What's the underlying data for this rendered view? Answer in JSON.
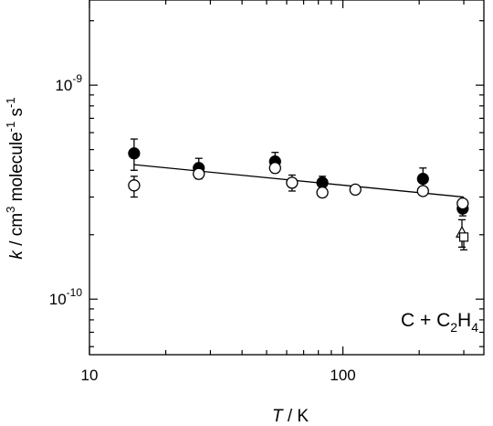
{
  "chart_data": {
    "type": "scatter",
    "title": "",
    "xlabel": {
      "italic": "T",
      "rest": " / K"
    },
    "ylabel": {
      "italic": "k",
      "p1": " / cm",
      "sup1": "3",
      "p2": " molecule",
      "sup2": "-1",
      "p3": " s",
      "sup3": "-1"
    },
    "x_scale": "log",
    "y_scale": "log",
    "xlim": [
      10,
      360
    ],
    "ylim": [
      5.5e-11,
      2.5e-09
    ],
    "x_ticks": [
      {
        "value": 10,
        "label": "10"
      },
      {
        "value": 100,
        "label": "100"
      }
    ],
    "y_ticks": [
      {
        "value": 1e-10,
        "base": "10",
        "exp": "-10"
      },
      {
        "value": 1e-09,
        "base": "10",
        "exp": "-9"
      }
    ],
    "annotation": {
      "p1": "C + C",
      "sub1": "2",
      "p2": "H",
      "sub2": "4"
    },
    "series": [
      {
        "marker": "filled-circle",
        "points": [
          {
            "x": 15,
            "y": 4.8e-10,
            "err_up": 8e-11,
            "err_down": 8e-11
          },
          {
            "x": 27,
            "y": 4.1e-10,
            "err_up": 4.5e-11,
            "err_down": 3e-11
          },
          {
            "x": 54,
            "y": 4.4e-10,
            "err_up": 4.5e-11,
            "err_down": 3e-11
          },
          {
            "x": 83,
            "y": 3.5e-10,
            "err_up": 2.5e-11,
            "err_down": 2e-11
          },
          {
            "x": 207,
            "y": 3.65e-10,
            "err_up": 4.5e-11,
            "err_down": 3e-11
          },
          {
            "x": 297,
            "y": 2.65e-10,
            "err_up": 2e-11,
            "err_down": 2e-11
          }
        ]
      },
      {
        "marker": "open-circle",
        "points": [
          {
            "x": 15,
            "y": 3.4e-10,
            "err_up": 3.5e-11,
            "err_down": 4e-11
          },
          {
            "x": 27,
            "y": 3.85e-10,
            "err_up": 2e-11,
            "err_down": 2e-11
          },
          {
            "x": 54,
            "y": 4.1e-10,
            "err_up": 2e-11,
            "err_down": 2e-11
          },
          {
            "x": 63,
            "y": 3.5e-10,
            "err_up": 3e-11,
            "err_down": 3e-11
          },
          {
            "x": 83,
            "y": 3.15e-10,
            "err_up": 1.5e-11,
            "err_down": 1.5e-11
          },
          {
            "x": 112,
            "y": 3.25e-10,
            "err_up": 0,
            "err_down": 0
          },
          {
            "x": 207,
            "y": 3.2e-10,
            "err_up": 0,
            "err_down": 0
          },
          {
            "x": 297,
            "y": 2.8e-10,
            "err_up": 0,
            "err_down": 0
          }
        ]
      },
      {
        "marker": "open-triangle",
        "points": [
          {
            "x": 295,
            "y": 2.05e-10,
            "err_up": 3e-11,
            "err_down": 3e-11
          }
        ]
      },
      {
        "marker": "open-square",
        "points": [
          {
            "x": 300,
            "y": 1.95e-10,
            "err_up": 0,
            "err_down": 2.5e-11
          }
        ]
      }
    ],
    "fit_line": {
      "x": [
        15,
        300
      ],
      "y": [
        4.25e-10,
        3e-10
      ]
    },
    "grid": false,
    "legend": "none"
  }
}
